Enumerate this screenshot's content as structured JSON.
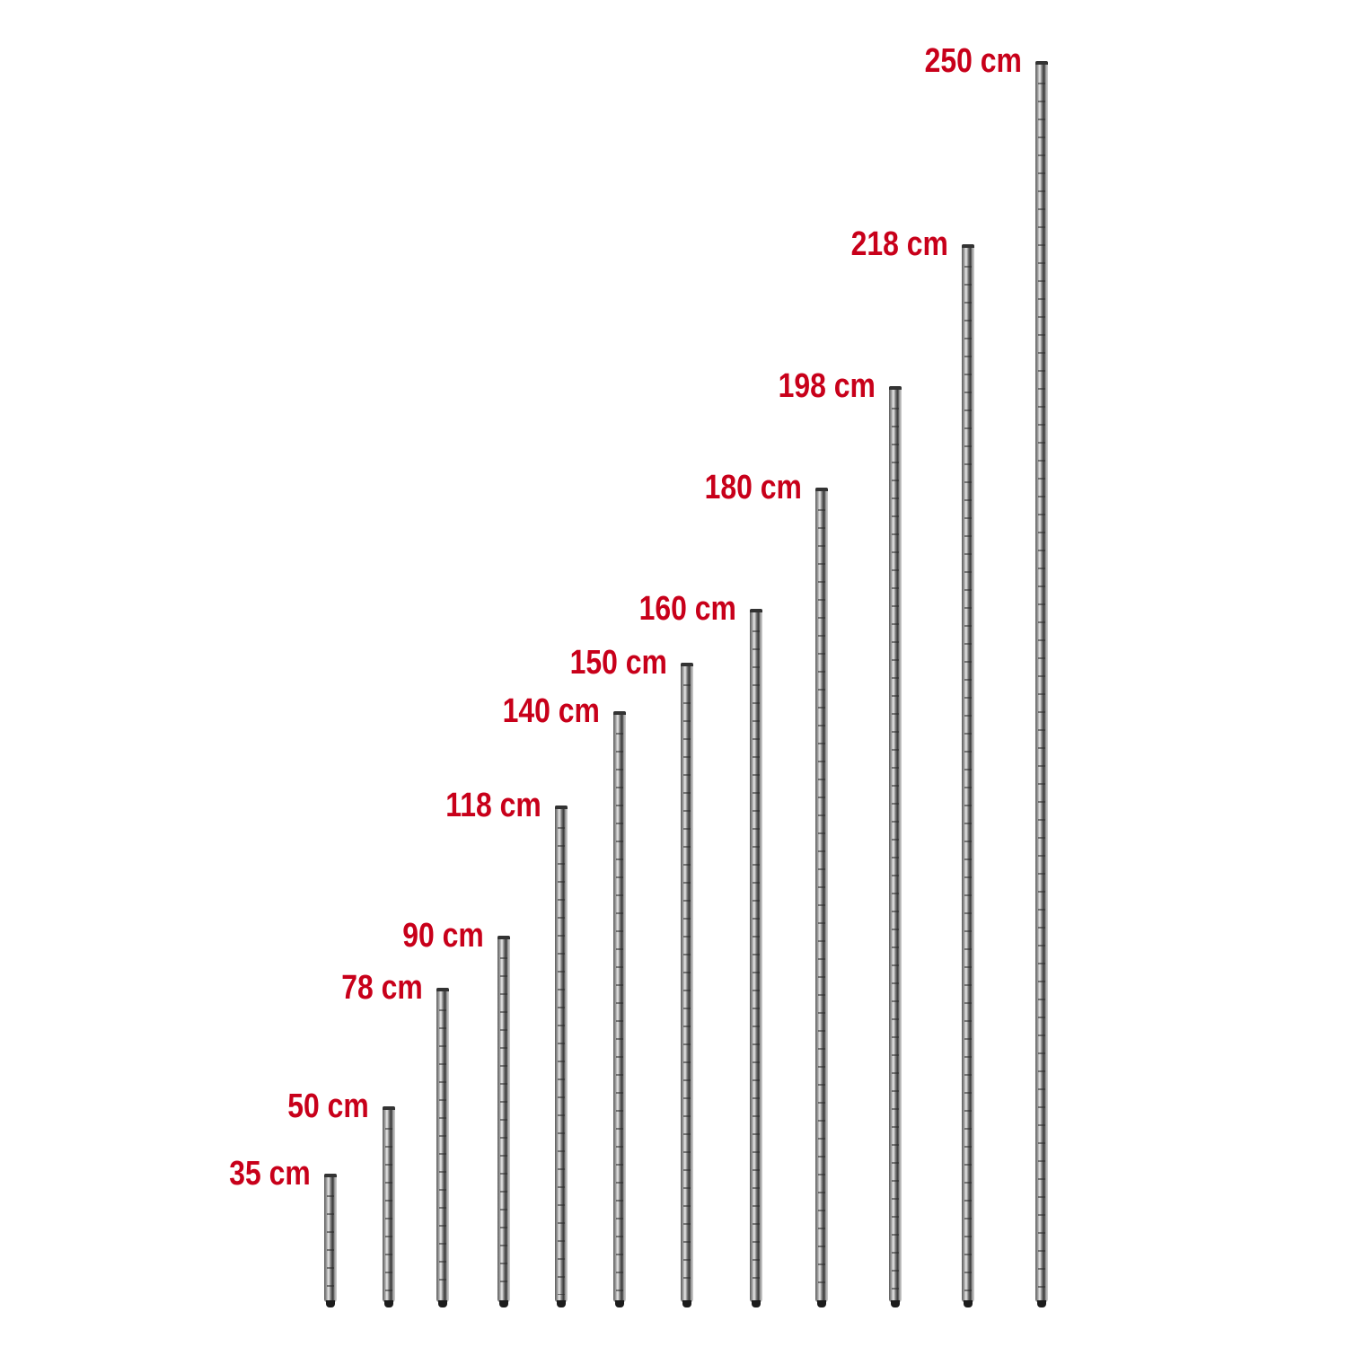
{
  "label_color": "#c8001a",
  "poles": [
    {
      "label": "35 cm"
    },
    {
      "label": "50 cm"
    },
    {
      "label": "78 cm"
    },
    {
      "label": "90 cm"
    },
    {
      "label": "118 cm"
    },
    {
      "label": "140 cm"
    },
    {
      "label": "150 cm"
    },
    {
      "label": "160 cm"
    },
    {
      "label": "180 cm"
    },
    {
      "label": "198 cm"
    },
    {
      "label": "218 cm"
    },
    {
      "label": "250 cm"
    }
  ]
}
